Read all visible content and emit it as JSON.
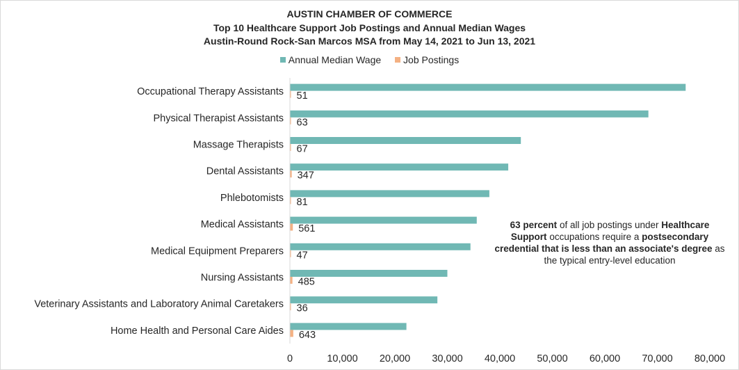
{
  "header": {
    "line1": "AUSTIN CHAMBER OF COMMERCE",
    "line2": "Top 10 Healthcare Support Job Postings and Annual Median Wages",
    "line3": "Austin-Round Rock-San Marcos MSA from May 14, 2021 to Jun 13, 2021"
  },
  "legend": [
    {
      "label": "Annual Median Wage",
      "color": "#70b8b4"
    },
    {
      "label": "Job Postings",
      "color": "#f4b183"
    }
  ],
  "note": {
    "b1": "63 percent",
    "t1": " of all job postings under ",
    "b2": "Healthcare Support",
    "t2": " occupations require a ",
    "b3": "postsecondary credential that is less than an associate's degree",
    "t3": " as the typical entry-level education"
  },
  "chart_data": {
    "type": "bar",
    "orientation": "horizontal",
    "title": "Top 10 Healthcare Support Job Postings and Annual Median Wages",
    "categories": [
      "Occupational Therapy Assistants",
      "Physical Therapist Assistants",
      "Massage Therapists",
      "Dental Assistants",
      "Phlebotomists",
      "Medical Assistants",
      "Medical Equipment Preparers",
      "Nursing Assistants",
      "Veterinary Assistants and Laboratory Animal Caretakers",
      "Home Health and Personal Care Aides"
    ],
    "series": [
      {
        "name": "Annual Median Wage",
        "color": "#70b8b4",
        "values": [
          75400,
          68300,
          44000,
          41600,
          38000,
          35600,
          34400,
          30000,
          28100,
          22200
        ]
      },
      {
        "name": "Job Postings",
        "color": "#f4b183",
        "values": [
          51,
          63,
          67,
          347,
          81,
          561,
          47,
          485,
          36,
          643
        ]
      }
    ],
    "xlim": [
      0,
      80000
    ],
    "xticks": [
      "0",
      "10,000",
      "20,000",
      "30,000",
      "40,000",
      "50,000",
      "60,000",
      "70,000",
      "80,000"
    ],
    "grid": false,
    "legend_position": "top"
  }
}
